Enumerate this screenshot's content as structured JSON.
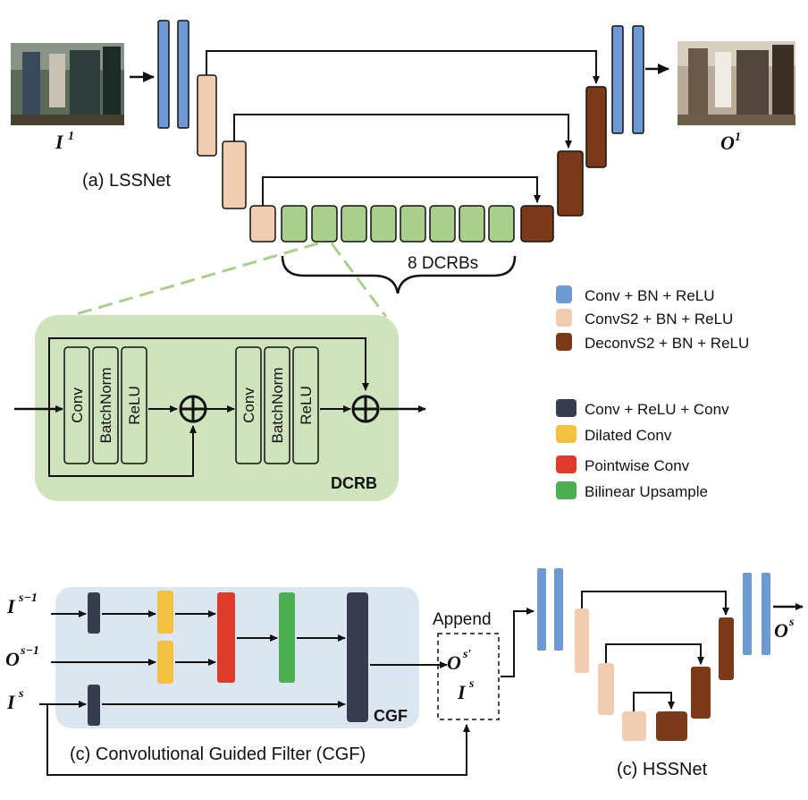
{
  "colors": {
    "conv": "#6d9ad4",
    "convs2": "#f2ccb0",
    "deconvs2": "#7a3a1a",
    "conv_relu_conv": "#363d4e",
    "dilated": "#f5c042",
    "pointwise": "#e03a2a",
    "bilinear": "#4caf50",
    "dcrb_block": "#a9cf8c",
    "dcrb_bg": "#cfe3bc",
    "cgf_bg": "#dbe6f1"
  },
  "lssnet": {
    "caption": "(a) LSSNet",
    "input_label": {
      "base": "I",
      "sup": "1"
    },
    "output_label": {
      "base": "O",
      "sup": "1"
    },
    "dcrb_count_label": "8 DCRBs"
  },
  "legend": [
    {
      "label": "Conv + BN + ReLU",
      "color": "#6d9ad4"
    },
    {
      "label": "ConvS2 + BN + ReLU",
      "color": "#f2ccb0"
    },
    {
      "label": "DeconvS2 + BN + ReLU",
      "color": "#7a3a1a"
    },
    {
      "label": "Conv + ReLU + Conv",
      "color": "#363d4e"
    },
    {
      "label": "Dilated Conv",
      "color": "#f5c042"
    },
    {
      "label": "Pointwise Conv",
      "color": "#e03a2a"
    },
    {
      "label": "Bilinear Upsample",
      "color": "#4caf50"
    }
  ],
  "dcrb": {
    "title": "DCRB",
    "layers": [
      "Conv",
      "BatchNorm",
      "ReLU",
      "Conv",
      "BatchNorm",
      "ReLU"
    ]
  },
  "cgf": {
    "tag": "CGF",
    "caption": "(c) Convolutional Guided Filter (CGF)",
    "inputs": [
      {
        "base": "I",
        "sup": "s−1"
      },
      {
        "base": "O",
        "sup": "s−1"
      },
      {
        "base": "I",
        "sup": "s"
      }
    ],
    "append_label": "Append",
    "append_out": {
      "base": "O",
      "sup": "s′"
    },
    "append_in": {
      "base": "I",
      "sup": "s"
    }
  },
  "hssnet": {
    "caption": "(c) HSSNet",
    "output_label": {
      "base": "O",
      "sup": "s"
    }
  }
}
